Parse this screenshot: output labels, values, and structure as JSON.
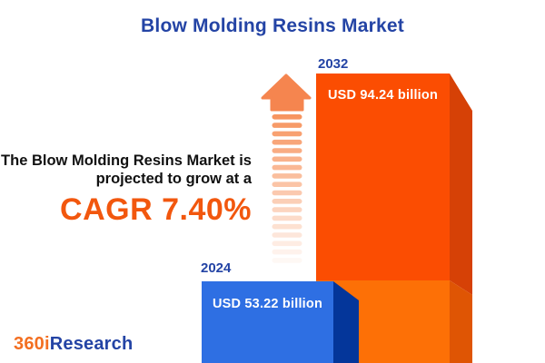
{
  "title": {
    "text": "Blow Molding Resins Market",
    "color": "#2444a5"
  },
  "description": {
    "line1": "The Blow Molding Resins Market is",
    "line2": "projected to grow at a"
  },
  "cagr": {
    "label": "CAGR 7.40%",
    "color": "#f2570e"
  },
  "chart_data": {
    "type": "bar",
    "title": "Blow Molding Resins Market",
    "categories": [
      "2024",
      "2032"
    ],
    "values": [
      53.22,
      94.24
    ],
    "unit": "USD billion",
    "value_labels": [
      "USD 53.22 billion",
      "USD 94.24 billion"
    ],
    "cagr_percent": 7.4,
    "annotation": "The Blow Molding Resins Market is projected to grow at a CAGR 7.40%",
    "legend": "none",
    "grid": false,
    "style": "3d-extruded-bars"
  },
  "bars": [
    {
      "year": "2024",
      "value_label": "USD 53.22 billion",
      "front_color": "#2e6fe3",
      "side_color": "#04369a",
      "label_color": "#2444a5"
    },
    {
      "year": "2032",
      "value_label": "USD 94.24 billion",
      "front_color_top": "#fb4d02",
      "front_color_bottom": "#fd7006",
      "side_color_top": "#d64106",
      "side_color_bottom": "#df5504",
      "label_color": "#2444a5"
    }
  ],
  "arrow": {
    "icon": "growth-arrow-icon",
    "head_color": "#f5854f",
    "dash_color": "#f79560",
    "dash_count": 18
  },
  "logo": {
    "part1": "360i",
    "part1_color": "#f36f21",
    "part2": "Research",
    "part2_color": "#2444a5"
  }
}
